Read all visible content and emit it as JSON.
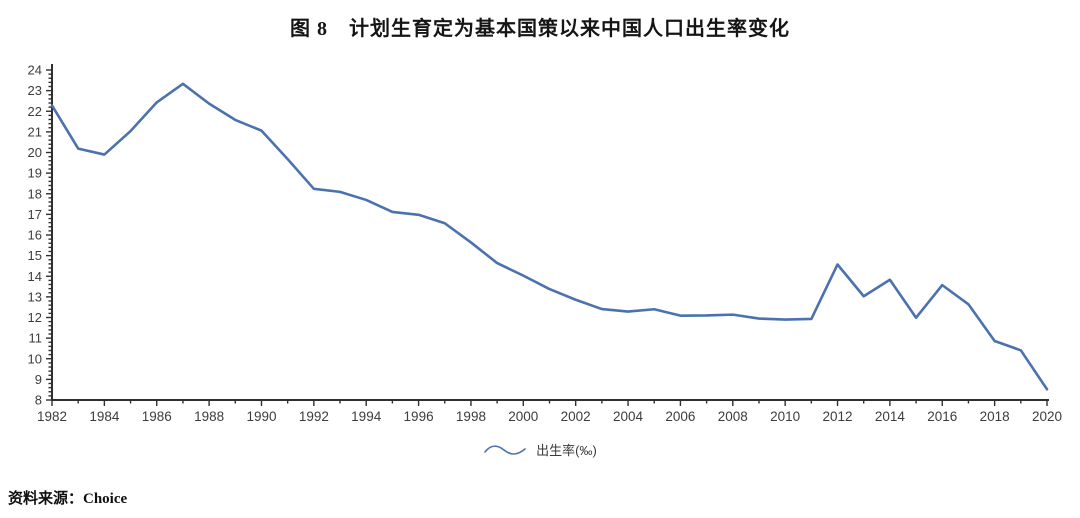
{
  "title": "图 8　计划生育定为基本国策以来中国人口出生率变化",
  "source": "资料来源：Choice",
  "legend": {
    "label": "出生率(‰)"
  },
  "colors": {
    "line": "#4b72ae",
    "axis": "#2f2f2f",
    "tick_label": "#3d3d3d"
  },
  "chart_data": {
    "type": "line",
    "title": "图 8　计划生育定为基本国策以来中国人口出生率变化",
    "xlabel": "",
    "ylabel": "",
    "x": [
      1982,
      1983,
      1984,
      1985,
      1986,
      1987,
      1988,
      1989,
      1990,
      1991,
      1992,
      1993,
      1994,
      1995,
      1996,
      1997,
      1998,
      1999,
      2000,
      2001,
      2002,
      2003,
      2004,
      2005,
      2006,
      2007,
      2008,
      2009,
      2010,
      2011,
      2012,
      2013,
      2014,
      2015,
      2016,
      2017,
      2018,
      2019,
      2020
    ],
    "series": [
      {
        "name": "出生率(‰)",
        "values": [
          22.28,
          20.19,
          19.9,
          21.04,
          22.43,
          23.33,
          22.37,
          21.58,
          21.06,
          19.68,
          18.24,
          18.09,
          17.7,
          17.12,
          16.98,
          16.57,
          15.64,
          14.64,
          14.03,
          13.38,
          12.86,
          12.41,
          12.29,
          12.4,
          12.09,
          12.1,
          12.14,
          11.95,
          11.9,
          11.93,
          14.57,
          13.03,
          13.83,
          11.99,
          13.57,
          12.64,
          10.86,
          10.41,
          8.52
        ]
      }
    ],
    "ylim": [
      8,
      24
    ],
    "y_tick_step": 1,
    "y_minor_step": 0.2,
    "xlim": [
      1982,
      2020
    ],
    "x_label_step": 2,
    "grid": false,
    "legend_position": "bottom-center"
  }
}
